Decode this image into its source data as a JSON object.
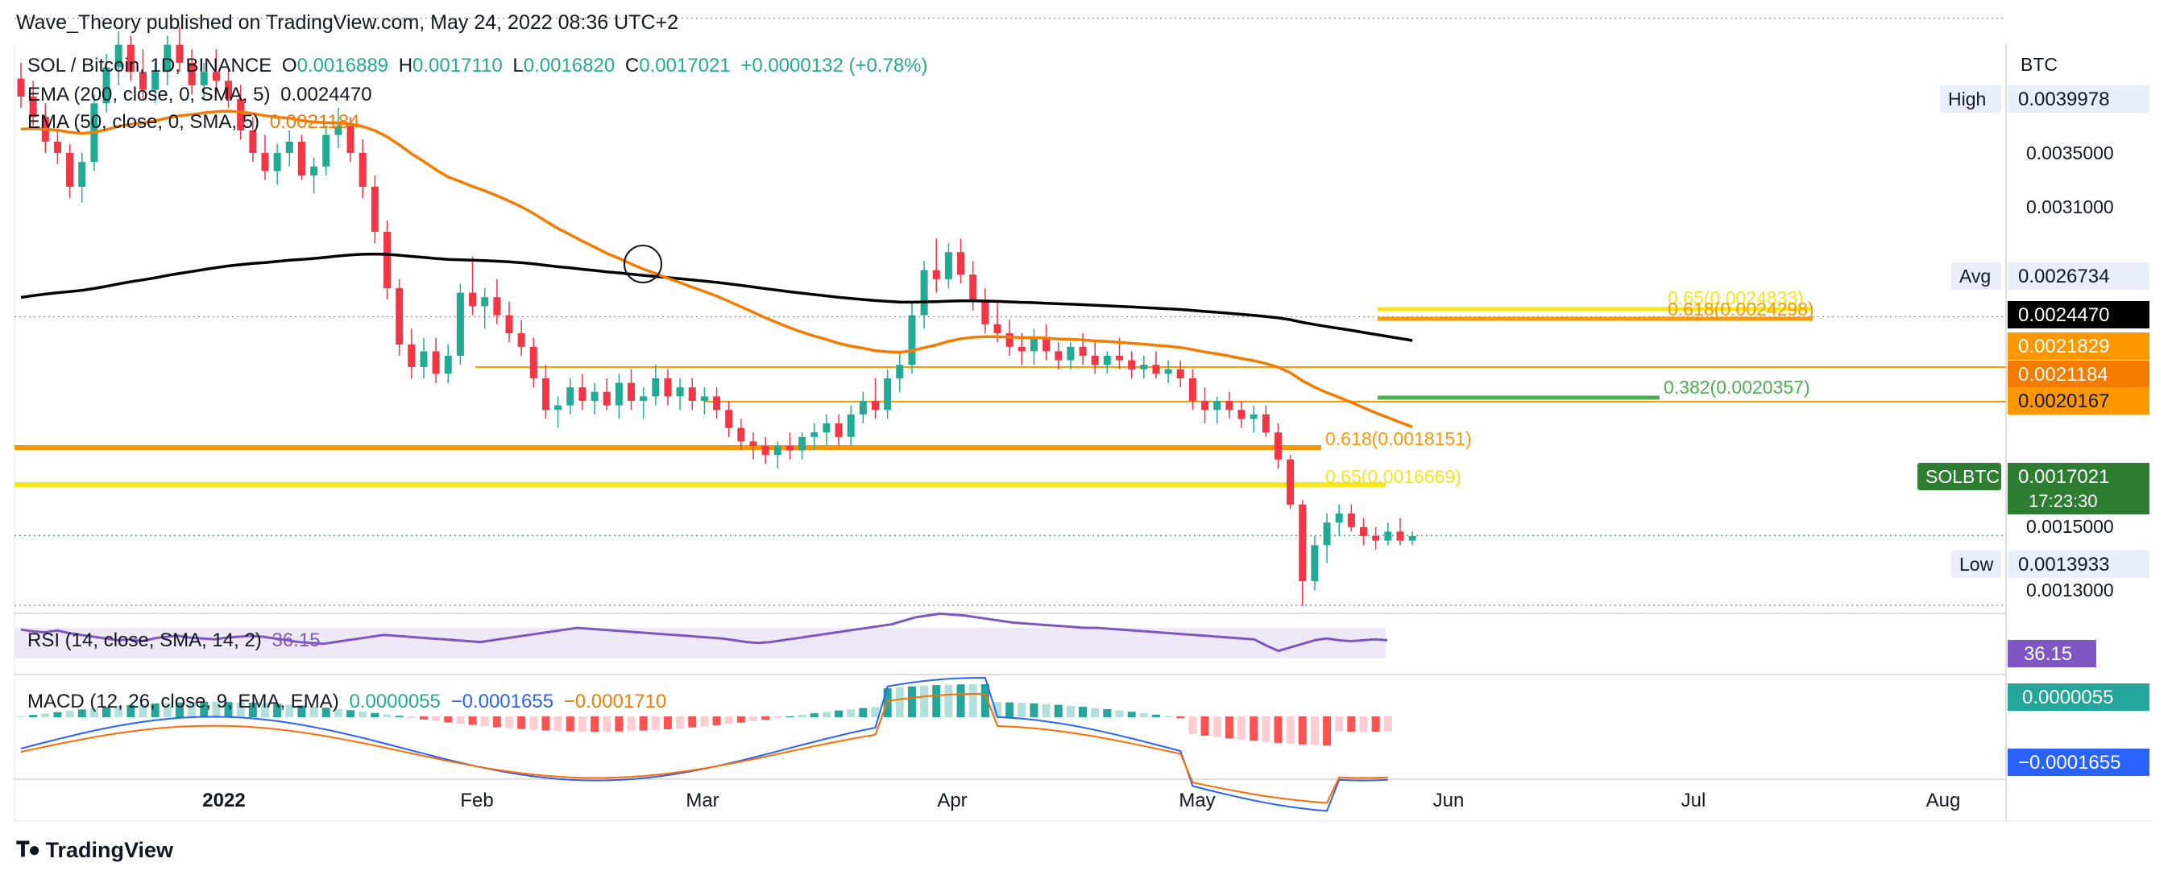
{
  "header": {
    "published": "Wave_Theory published on TradingView.com, May 24, 2022 08:36 UTC+2",
    "symbol": "SOL / Bitcoin, 1D, BINANCE",
    "o_label": "O",
    "o_value": "0.0016889",
    "h_label": "H",
    "h_value": "0.0017110",
    "l_label": "L",
    "l_value": "0.0016820",
    "c_label": "C",
    "c_value": "0.0017021",
    "change": "+0.0000132 (+0.78%)",
    "ema200_label": "EMA (200, close, 0, SMA, 5)",
    "ema200_value": "0.0024470",
    "ema50_label": "EMA (50, close, 0, SMA, 5)",
    "ema50_value": "0.0021184",
    "rsi_label": "RSI (14, close, SMA, 14, 2)",
    "rsi_value": "36.15",
    "macd_label": "MACD (12, 26, close, 9, EMA, EMA)",
    "macd_hist": "0.0000055",
    "macd_line": "−0.0001655",
    "macd_signal": "−0.0001710"
  },
  "footer": {
    "brand": "TradingView"
  },
  "colors": {
    "up": "#22ab94",
    "down": "#f23645",
    "ema200": "#000000",
    "ema50": "#f57c00",
    "rsi": "#7e57c2",
    "macd": "#2962ff",
    "signal": "#ff6d00",
    "fib_yellow": "#f5e61b",
    "fib_orange": "#ff9800",
    "fib_green": "#4caf50"
  },
  "chart_data": {
    "type": "candlestick",
    "symbol": "SOLBTC",
    "axis_unit": "BTC",
    "y_ticks": [
      "0.0035000",
      "0.0031000",
      "0.0015000",
      "0.0013000"
    ],
    "x_ticks": [
      "2022",
      "Feb",
      "Mar",
      "Apr",
      "May",
      "Jun",
      "Jul",
      "Aug"
    ],
    "current_price": "0.0017021",
    "countdown": "17:23:30",
    "price_labels": [
      {
        "text": "High",
        "value": "0.0039978"
      },
      {
        "text": "Avg",
        "value": "0.0026734"
      },
      {
        "text": "",
        "value": "0.0024470"
      },
      {
        "text": "",
        "value": "0.0021829"
      },
      {
        "text": "",
        "value": "0.0021184"
      },
      {
        "text": "",
        "value": "0.0020167"
      },
      {
        "text": "SOLBTC",
        "value": "0.0017021"
      },
      {
        "text": "Low",
        "value": "0.0013933"
      }
    ],
    "fib_labels": [
      {
        "text": "0.65(0.0024833)",
        "value": 0.0024833
      },
      {
        "text": "0.618(0.0024298)",
        "value": 0.0024298
      },
      {
        "text": "0.382(0.0020357)",
        "value": 0.0020357
      },
      {
        "text": "0.618(0.0018151)",
        "value": 0.0018151
      },
      {
        "text": "0.65(0.0016669)",
        "value": 0.0016669
      }
    ],
    "ohlc": [
      [
        0.00373,
        0.0038,
        0.0036,
        0.00365
      ],
      [
        0.00365,
        0.00372,
        0.00352,
        0.00356
      ],
      [
        0.00356,
        0.00362,
        0.0034,
        0.00345
      ],
      [
        0.00345,
        0.0035,
        0.00335,
        0.0034
      ],
      [
        0.0034,
        0.00344,
        0.0032,
        0.00325
      ],
      [
        0.00325,
        0.0034,
        0.00318,
        0.00336
      ],
      [
        0.00336,
        0.00366,
        0.00332,
        0.00362
      ],
      [
        0.00362,
        0.00384,
        0.00358,
        0.00378
      ],
      [
        0.00378,
        0.00394,
        0.0037,
        0.00388
      ],
      [
        0.00388,
        0.00392,
        0.00372,
        0.00376
      ],
      [
        0.00376,
        0.00386,
        0.00364,
        0.00368
      ],
      [
        0.00368,
        0.0038,
        0.00362,
        0.00376
      ],
      [
        0.00376,
        0.00392,
        0.0037,
        0.00388
      ],
      [
        0.00388,
        0.00396,
        0.00376,
        0.0038
      ],
      [
        0.0038,
        0.00386,
        0.00366,
        0.0037
      ],
      [
        0.0037,
        0.0038,
        0.00364,
        0.00376
      ],
      [
        0.00376,
        0.00386,
        0.00366,
        0.00372
      ],
      [
        0.00372,
        0.00378,
        0.0036,
        0.00364
      ],
      [
        0.00364,
        0.0037,
        0.00346,
        0.0035
      ],
      [
        0.0035,
        0.00356,
        0.00336,
        0.0034
      ],
      [
        0.0034,
        0.00348,
        0.00328,
        0.00332
      ],
      [
        0.00332,
        0.00344,
        0.00326,
        0.0034
      ],
      [
        0.0034,
        0.0035,
        0.00334,
        0.00345
      ],
      [
        0.00345,
        0.00348,
        0.00328,
        0.0033
      ],
      [
        0.0033,
        0.00338,
        0.00322,
        0.00334
      ],
      [
        0.00334,
        0.00352,
        0.0033,
        0.00348
      ],
      [
        0.00348,
        0.0036,
        0.00342,
        0.00352
      ],
      [
        0.00352,
        0.00356,
        0.00336,
        0.0034
      ],
      [
        0.0034,
        0.00346,
        0.0032,
        0.00325
      ],
      [
        0.00325,
        0.0033,
        0.003,
        0.00305
      ],
      [
        0.00305,
        0.0031,
        0.00275,
        0.0028
      ],
      [
        0.0028,
        0.00284,
        0.0025,
        0.00255
      ],
      [
        0.00255,
        0.00262,
        0.0024,
        0.00245
      ],
      [
        0.00245,
        0.00258,
        0.0024,
        0.00252
      ],
      [
        0.00252,
        0.00258,
        0.00238,
        0.00242
      ],
      [
        0.00242,
        0.00255,
        0.00238,
        0.0025
      ],
      [
        0.0025,
        0.00282,
        0.00246,
        0.00278
      ],
      [
        0.00278,
        0.00294,
        0.00268,
        0.00272
      ],
      [
        0.00272,
        0.0028,
        0.00262,
        0.00276
      ],
      [
        0.00276,
        0.00284,
        0.00264,
        0.00268
      ],
      [
        0.00268,
        0.00274,
        0.00256,
        0.0026
      ],
      [
        0.0026,
        0.00266,
        0.0025,
        0.00254
      ],
      [
        0.00254,
        0.00258,
        0.00236,
        0.0024
      ],
      [
        0.0024,
        0.00246,
        0.00222,
        0.00226
      ],
      [
        0.00226,
        0.00232,
        0.00218,
        0.00228
      ],
      [
        0.00228,
        0.0024,
        0.00224,
        0.00236
      ],
      [
        0.00236,
        0.00242,
        0.00226,
        0.0023
      ],
      [
        0.0023,
        0.00238,
        0.00224,
        0.00234
      ],
      [
        0.00234,
        0.0024,
        0.00226,
        0.00228
      ],
      [
        0.00228,
        0.00242,
        0.00222,
        0.00238
      ],
      [
        0.00238,
        0.00244,
        0.00226,
        0.0023
      ],
      [
        0.0023,
        0.00236,
        0.00222,
        0.00232
      ],
      [
        0.00232,
        0.00246,
        0.00228,
        0.0024
      ],
      [
        0.0024,
        0.00244,
        0.00228,
        0.00232
      ],
      [
        0.00232,
        0.0024,
        0.00226,
        0.00236
      ],
      [
        0.00236,
        0.0024,
        0.00226,
        0.0023
      ],
      [
        0.0023,
        0.00236,
        0.00224,
        0.00232
      ],
      [
        0.00232,
        0.00236,
        0.00222,
        0.00226
      ],
      [
        0.00226,
        0.0023,
        0.00214,
        0.00218
      ],
      [
        0.00218,
        0.00222,
        0.00208,
        0.00212
      ],
      [
        0.00212,
        0.00216,
        0.00204,
        0.0021
      ],
      [
        0.0021,
        0.00214,
        0.00202,
        0.00206
      ],
      [
        0.00206,
        0.00212,
        0.002,
        0.0021
      ],
      [
        0.0021,
        0.00216,
        0.00204,
        0.00208
      ],
      [
        0.00208,
        0.00216,
        0.00204,
        0.00214
      ],
      [
        0.00214,
        0.0022,
        0.00208,
        0.00216
      ],
      [
        0.00216,
        0.00224,
        0.0021,
        0.0022
      ],
      [
        0.0022,
        0.00224,
        0.0021,
        0.00214
      ],
      [
        0.00214,
        0.00228,
        0.0021,
        0.00224
      ],
      [
        0.00224,
        0.00234,
        0.0022,
        0.0023
      ],
      [
        0.0023,
        0.0024,
        0.00222,
        0.00226
      ],
      [
        0.00226,
        0.00244,
        0.00222,
        0.0024
      ],
      [
        0.0024,
        0.00252,
        0.00234,
        0.00246
      ],
      [
        0.00246,
        0.00274,
        0.00242,
        0.00268
      ],
      [
        0.00268,
        0.00292,
        0.00262,
        0.00288
      ],
      [
        0.00288,
        0.00302,
        0.00278,
        0.00284
      ],
      [
        0.00284,
        0.003,
        0.0028,
        0.00296
      ],
      [
        0.00296,
        0.00302,
        0.00282,
        0.00286
      ],
      [
        0.00286,
        0.00292,
        0.0027,
        0.00274
      ],
      [
        0.00274,
        0.0028,
        0.0026,
        0.00264
      ],
      [
        0.00264,
        0.00274,
        0.00256,
        0.0026
      ],
      [
        0.0026,
        0.00266,
        0.0025,
        0.00254
      ],
      [
        0.00254,
        0.0026,
        0.00246,
        0.00252
      ],
      [
        0.00252,
        0.00262,
        0.00246,
        0.00258
      ],
      [
        0.00258,
        0.00264,
        0.00248,
        0.00252
      ],
      [
        0.00252,
        0.00256,
        0.00244,
        0.00248
      ],
      [
        0.00248,
        0.00256,
        0.00244,
        0.00254
      ],
      [
        0.00254,
        0.0026,
        0.00246,
        0.0025
      ],
      [
        0.0025,
        0.00256,
        0.00242,
        0.00246
      ],
      [
        0.00246,
        0.00252,
        0.00242,
        0.0025
      ],
      [
        0.0025,
        0.00258,
        0.00244,
        0.00248
      ],
      [
        0.00248,
        0.00252,
        0.0024,
        0.00244
      ],
      [
        0.00244,
        0.0025,
        0.0024,
        0.00246
      ],
      [
        0.00246,
        0.00252,
        0.0024,
        0.00242
      ],
      [
        0.00242,
        0.00248,
        0.00238,
        0.00244
      ],
      [
        0.00244,
        0.00248,
        0.00236,
        0.0024
      ],
      [
        0.0024,
        0.00244,
        0.00226,
        0.0023
      ],
      [
        0.0023,
        0.00236,
        0.0022,
        0.00226
      ],
      [
        0.00226,
        0.00232,
        0.0022,
        0.0023
      ],
      [
        0.0023,
        0.00234,
        0.00222,
        0.00226
      ],
      [
        0.00226,
        0.0023,
        0.00218,
        0.00222
      ],
      [
        0.00222,
        0.00228,
        0.00216,
        0.00224
      ],
      [
        0.00224,
        0.00228,
        0.00214,
        0.00216
      ],
      [
        0.00216,
        0.0022,
        0.002,
        0.00204
      ],
      [
        0.00204,
        0.00206,
        0.00182,
        0.00184
      ],
      [
        0.00184,
        0.00186,
        0.00139,
        0.0015
      ],
      [
        0.0015,
        0.0017,
        0.00146,
        0.00166
      ],
      [
        0.00166,
        0.0018,
        0.00158,
        0.00176
      ],
      [
        0.00176,
        0.00184,
        0.0017,
        0.0018
      ],
      [
        0.0018,
        0.00184,
        0.00172,
        0.00174
      ],
      [
        0.00174,
        0.00178,
        0.00166,
        0.0017
      ],
      [
        0.0017,
        0.00174,
        0.00164,
        0.00168
      ],
      [
        0.00168,
        0.00176,
        0.00166,
        0.00172
      ],
      [
        0.00172,
        0.00178,
        0.00166,
        0.00168
      ],
      [
        0.00168,
        0.00172,
        0.00166,
        0.0017
      ]
    ]
  }
}
